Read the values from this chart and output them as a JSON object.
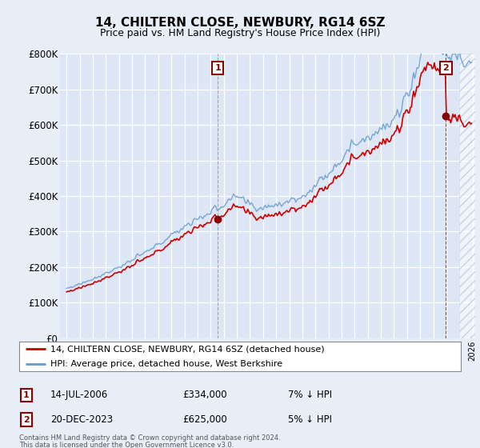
{
  "title": "14, CHILTERN CLOSE, NEWBURY, RG14 6SZ",
  "subtitle": "Price paid vs. HM Land Registry's House Price Index (HPI)",
  "background_color": "#e8eef8",
  "plot_bg_color": "#dce6f5",
  "ylim": [
    0,
    800000
  ],
  "yticks": [
    0,
    100000,
    200000,
    300000,
    400000,
    500000,
    600000,
    700000,
    800000
  ],
  "ytick_labels": [
    "£0",
    "£100K",
    "£200K",
    "£300K",
    "£400K",
    "£500K",
    "£600K",
    "£700K",
    "£800K"
  ],
  "hpi_color": "#6699cc",
  "price_color": "#cc0000",
  "sale1_year": 2006.54,
  "sale1_price": 334000,
  "sale1_discount": 0.07,
  "sale2_year": 2023.97,
  "sale2_price": 625000,
  "sale2_discount": 0.05,
  "legend_label1": "14, CHILTERN CLOSE, NEWBURY, RG14 6SZ (detached house)",
  "legend_label2": "HPI: Average price, detached house, West Berkshire",
  "footer1": "Contains HM Land Registry data © Crown copyright and database right 2024.",
  "footer2": "This data is licensed under the Open Government Licence v3.0.",
  "table_row1": [
    "1",
    "14-JUL-2006",
    "£334,000",
    "7% ↓ HPI"
  ],
  "table_row2": [
    "2",
    "20-DEC-2023",
    "£625,000",
    "5% ↓ HPI"
  ]
}
